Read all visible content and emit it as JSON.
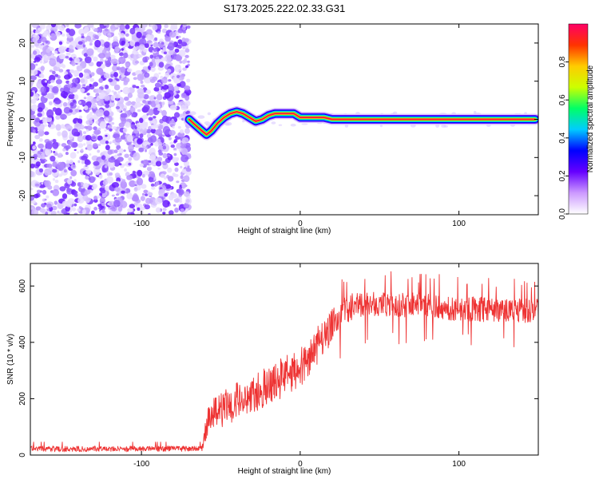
{
  "title": "S173.2025.222.02.33.G31",
  "chart_data": [
    {
      "type": "heatmap",
      "name": "spectrogram",
      "xlabel": "Height of straight line (km)",
      "ylabel": "Frequency (Hz)",
      "xlim": [
        -170,
        150
      ],
      "ylim": [
        -25,
        25
      ],
      "xticks": [
        -100,
        0,
        100
      ],
      "xtick_labels": [
        "-100",
        "0",
        "100"
      ],
      "yticks": [
        20,
        10,
        0,
        -10,
        -20
      ],
      "ytick_labels": [
        "20",
        "10",
        "0",
        "-10",
        "-20"
      ],
      "noise_region_x": [
        -170,
        -70
      ],
      "track": {
        "x": [
          -70,
          -66,
          -62,
          -59,
          -56,
          -52,
          -48,
          -44,
          -40,
          -36,
          -32,
          -28,
          -24,
          -20,
          -16,
          -12,
          -8,
          -4,
          0,
          5,
          10,
          15,
          20,
          25,
          40,
          60,
          80,
          100,
          105,
          120,
          140,
          148
        ],
        "y": [
          0.0,
          -1.5,
          -3.0,
          -4.0,
          -3.0,
          -1.0,
          0.5,
          1.5,
          2.0,
          1.5,
          0.5,
          -0.5,
          0.0,
          1.0,
          1.5,
          1.5,
          1.5,
          1.5,
          0.5,
          0.5,
          0.5,
          0.5,
          0.0,
          0.0,
          0.0,
          0.0,
          0.0,
          0.0,
          0.0,
          0.0,
          0.0,
          0.0
        ]
      },
      "colorbar": {
        "label": "Normalized spectral amplitude",
        "ticks": [
          0.0,
          0.2,
          0.4,
          0.6,
          0.8
        ],
        "tick_labels": [
          "0.0",
          "0.2",
          "0.4",
          "0.6",
          "0.8"
        ],
        "range": [
          0,
          1
        ],
        "colors": [
          "#ffffff",
          "#cc99ff",
          "#6600ff",
          "#0000ff",
          "#00ccff",
          "#00ff66",
          "#ccff00",
          "#ffcc00",
          "#ff3300",
          "#ff0066"
        ]
      }
    },
    {
      "type": "line",
      "name": "snr",
      "xlabel": "Height of straight line (km)",
      "ylabel": "SNR (10 * v/v)",
      "xlim": [
        -170,
        150
      ],
      "ylim": [
        0,
        680
      ],
      "xticks": [
        -100,
        0,
        100
      ],
      "xtick_labels": [
        "-100",
        "0",
        "100"
      ],
      "yticks": [
        0,
        200,
        400,
        600
      ],
      "ytick_labels": [
        "0",
        "200",
        "400",
        "600"
      ],
      "color": "#ee3333",
      "envelope": {
        "x": [
          -170,
          -62,
          -58,
          -40,
          -20,
          0,
          10,
          20,
          30,
          40,
          60,
          80,
          100,
          120,
          150
        ],
        "mean": [
          22,
          22,
          130,
          190,
          250,
          310,
          380,
          460,
          520,
          540,
          535,
          530,
          520,
          515,
          510
        ],
        "spread": [
          10,
          10,
          60,
          70,
          75,
          70,
          70,
          60,
          50,
          45,
          45,
          45,
          45,
          45,
          45
        ]
      }
    }
  ]
}
